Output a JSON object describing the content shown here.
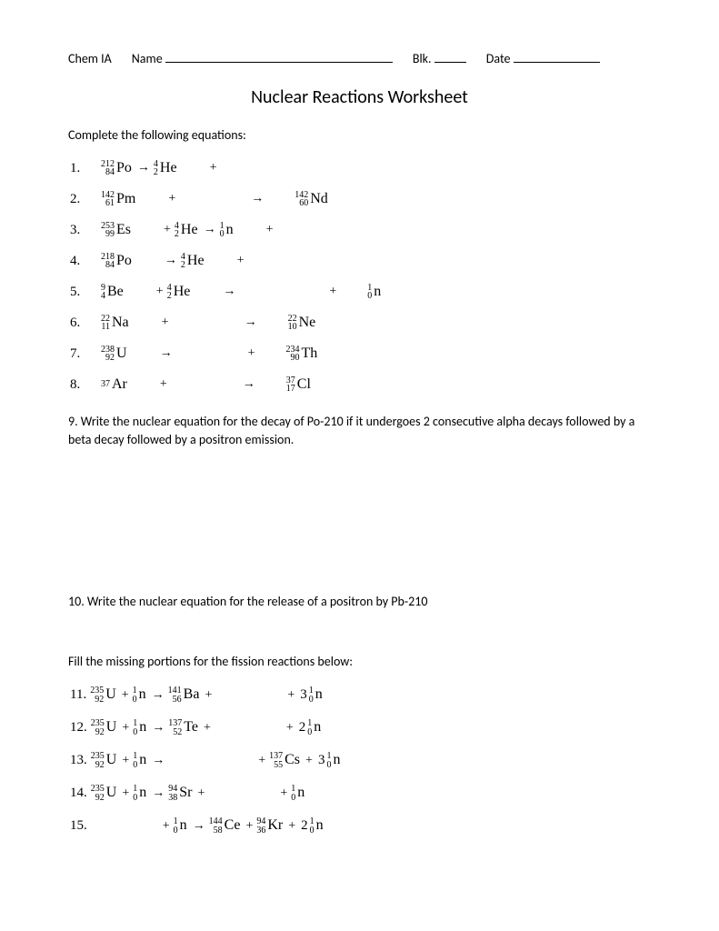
{
  "header": {
    "course": "Chem IA",
    "name_label": "Name",
    "blk_label": "Blk.",
    "date_label": "Date"
  },
  "title": "Nuclear Reactions Worksheet",
  "instruction1": "Complete the following equations:",
  "equations1": [
    {
      "num": "1.",
      "parts": [
        {
          "t": "nucl",
          "mass": "212",
          "atomic": "84",
          "sym": "Po"
        },
        {
          "t": "arrow"
        },
        {
          "t": "nucl",
          "mass": "4",
          "atomic": "2",
          "sym": "He"
        },
        {
          "t": "gap",
          "w": "sm"
        },
        {
          "t": "op",
          "v": "+"
        }
      ]
    },
    {
      "num": "2.",
      "parts": [
        {
          "t": "nucl",
          "mass": "142",
          "atomic": "61",
          "sym": "Pm"
        },
        {
          "t": "gap",
          "w": "sm"
        },
        {
          "t": "op",
          "v": "+"
        },
        {
          "t": "gap",
          "w": "lg"
        },
        {
          "t": "arrow"
        },
        {
          "t": "gap",
          "w": "sm"
        },
        {
          "t": "nucl",
          "mass": "142",
          "atomic": "60",
          "sym": "Nd"
        }
      ]
    },
    {
      "num": "3.",
      "parts": [
        {
          "t": "nucl",
          "mass": "253",
          "atomic": "99",
          "sym": "Es"
        },
        {
          "t": "gap",
          "w": "sm"
        },
        {
          "t": "op",
          "v": "+"
        },
        {
          "t": "nucl",
          "mass": "4",
          "atomic": "2",
          "sym": "He"
        },
        {
          "t": "arrow"
        },
        {
          "t": "nucl",
          "mass": "1",
          "atomic": "0",
          "sym": "n"
        },
        {
          "t": "gap",
          "w": "sm"
        },
        {
          "t": "op",
          "v": "+"
        }
      ]
    },
    {
      "num": "4.",
      "parts": [
        {
          "t": "nucl",
          "mass": "218",
          "atomic": "84",
          "sym": "Po"
        },
        {
          "t": "gap",
          "w": "sm"
        },
        {
          "t": "arrow"
        },
        {
          "t": "nucl",
          "mass": "4",
          "atomic": "2",
          "sym": "He"
        },
        {
          "t": "gap",
          "w": "sm"
        },
        {
          "t": "op",
          "v": "+"
        }
      ]
    },
    {
      "num": "5.",
      "parts": [
        {
          "t": "nucl",
          "mass": "9",
          "atomic": "4",
          "sym": "Be"
        },
        {
          "t": "gap",
          "w": "sm"
        },
        {
          "t": "op",
          "v": "+"
        },
        {
          "t": "nucl",
          "mass": "4",
          "atomic": "2",
          "sym": "He"
        },
        {
          "t": "gap",
          "w": "sm"
        },
        {
          "t": "arrow"
        },
        {
          "t": "gap",
          "w": "xl"
        },
        {
          "t": "op",
          "v": "+"
        },
        {
          "t": "gap",
          "w": "sm"
        },
        {
          "t": "nucl",
          "mass": "1",
          "atomic": "0",
          "sym": "n"
        }
      ]
    },
    {
      "num": "6.",
      "parts": [
        {
          "t": "nucl",
          "mass": "22",
          "atomic": "11",
          "sym": "Na"
        },
        {
          "t": "gap",
          "w": "sm"
        },
        {
          "t": "op",
          "v": "+"
        },
        {
          "t": "gap",
          "w": "lg"
        },
        {
          "t": "arrow"
        },
        {
          "t": "gap",
          "w": "sm"
        },
        {
          "t": "nucl",
          "mass": "22",
          "atomic": "10",
          "sym": "Ne"
        }
      ]
    },
    {
      "num": "7.",
      "parts": [
        {
          "t": "nucl",
          "mass": "238",
          "atomic": "92",
          "sym": "U"
        },
        {
          "t": "gap",
          "w": "sm"
        },
        {
          "t": "arrow"
        },
        {
          "t": "gap",
          "w": "lg"
        },
        {
          "t": "op",
          "v": "+"
        },
        {
          "t": "gap",
          "w": "sm"
        },
        {
          "t": "nucl",
          "mass": "234",
          "atomic": "90",
          "sym": "Th"
        }
      ]
    },
    {
      "num": "8.",
      "parts": [
        {
          "t": "nuclp",
          "mass": "37",
          "atomic": "",
          "sym": "Ar"
        },
        {
          "t": "gap",
          "w": "sm"
        },
        {
          "t": "op",
          "v": "+"
        },
        {
          "t": "gap",
          "w": "lg"
        },
        {
          "t": "arrow"
        },
        {
          "t": "gap",
          "w": "sm"
        },
        {
          "t": "nucl",
          "mass": "37",
          "atomic": "17",
          "sym": "Cl"
        }
      ]
    }
  ],
  "q9": "9.  Write the nuclear equation for the decay of Po-210 if it undergoes 2 consecutive alpha decays followed by a beta decay followed by a positron emission.",
  "q10": "10. Write the nuclear equation for the release of a positron by Pb-210",
  "instruction2": "Fill the missing portions for the fission reactions below:",
  "equations2": [
    {
      "num": "11.",
      "parts": [
        {
          "t": "nucl",
          "mass": "235",
          "atomic": "92",
          "sym": "U"
        },
        {
          "t": "op",
          "v": "+"
        },
        {
          "t": "nucl",
          "mass": "1",
          "atomic": "0",
          "sym": "n"
        },
        {
          "t": "arrow"
        },
        {
          "t": "nucl",
          "mass": "141",
          "atomic": "56",
          "sym": "Ba"
        },
        {
          "t": "op",
          "v": "+"
        },
        {
          "t": "gap",
          "w": "lg"
        },
        {
          "t": "op",
          "v": "+"
        },
        {
          "t": "txt",
          "v": "3"
        },
        {
          "t": "nucl",
          "mass": "1",
          "atomic": "0",
          "sym": "n"
        }
      ]
    },
    {
      "num": "12.",
      "parts": [
        {
          "t": "nucl",
          "mass": "235",
          "atomic": "92",
          "sym": "U"
        },
        {
          "t": "op",
          "v": "+"
        },
        {
          "t": "nucl",
          "mass": "1",
          "atomic": "0",
          "sym": "n"
        },
        {
          "t": "arrow"
        },
        {
          "t": "nucl",
          "mass": "137",
          "atomic": "52",
          "sym": "Te"
        },
        {
          "t": "op",
          "v": "+"
        },
        {
          "t": "gap",
          "w": "lg"
        },
        {
          "t": "op",
          "v": "+"
        },
        {
          "t": "txt",
          "v": "2"
        },
        {
          "t": "nucl",
          "mass": "1",
          "atomic": "0",
          "sym": "n"
        }
      ]
    },
    {
      "num": "13.",
      "parts": [
        {
          "t": "nucl",
          "mass": "235",
          "atomic": "92",
          "sym": "U"
        },
        {
          "t": "op",
          "v": "+"
        },
        {
          "t": "nucl",
          "mass": "1",
          "atomic": "0",
          "sym": "n"
        },
        {
          "t": "arrow"
        },
        {
          "t": "gap",
          "w": "xl"
        },
        {
          "t": "op",
          "v": "+"
        },
        {
          "t": "nucl",
          "mass": "137",
          "atomic": "55",
          "sym": "Cs"
        },
        {
          "t": "op",
          "v": "+"
        },
        {
          "t": "txt",
          "v": "3"
        },
        {
          "t": "nucl",
          "mass": "1",
          "atomic": "0",
          "sym": "n"
        }
      ]
    },
    {
      "num": "14.",
      "parts": [
        {
          "t": "nucl",
          "mass": "235",
          "atomic": "92",
          "sym": "U"
        },
        {
          "t": "op",
          "v": "+"
        },
        {
          "t": "nucl",
          "mass": "1",
          "atomic": "0",
          "sym": "n"
        },
        {
          "t": "arrow"
        },
        {
          "t": "nucl",
          "mass": "94",
          "atomic": "38",
          "sym": "Sr"
        },
        {
          "t": "op",
          "v": "+"
        },
        {
          "t": "gap",
          "w": "lg"
        },
        {
          "t": "op",
          "v": "+"
        },
        {
          "t": "nucl",
          "mass": "1",
          "atomic": "0",
          "sym": "n"
        }
      ]
    },
    {
      "num": "15.",
      "parts": [
        {
          "t": "gap",
          "w": "lg"
        },
        {
          "t": "op",
          "v": "+"
        },
        {
          "t": "nucl",
          "mass": "1",
          "atomic": "0",
          "sym": "n"
        },
        {
          "t": "arrow"
        },
        {
          "t": "nucl",
          "mass": "144",
          "atomic": "58",
          "sym": "Ce"
        },
        {
          "t": "op",
          "v": "+"
        },
        {
          "t": "nucl",
          "mass": "94",
          "atomic": "36",
          "sym": "Kr"
        },
        {
          "t": "op",
          "v": "+"
        },
        {
          "t": "txt",
          "v": "2"
        },
        {
          "t": "nucl",
          "mass": "1",
          "atomic": "0",
          "sym": "n"
        }
      ]
    }
  ]
}
